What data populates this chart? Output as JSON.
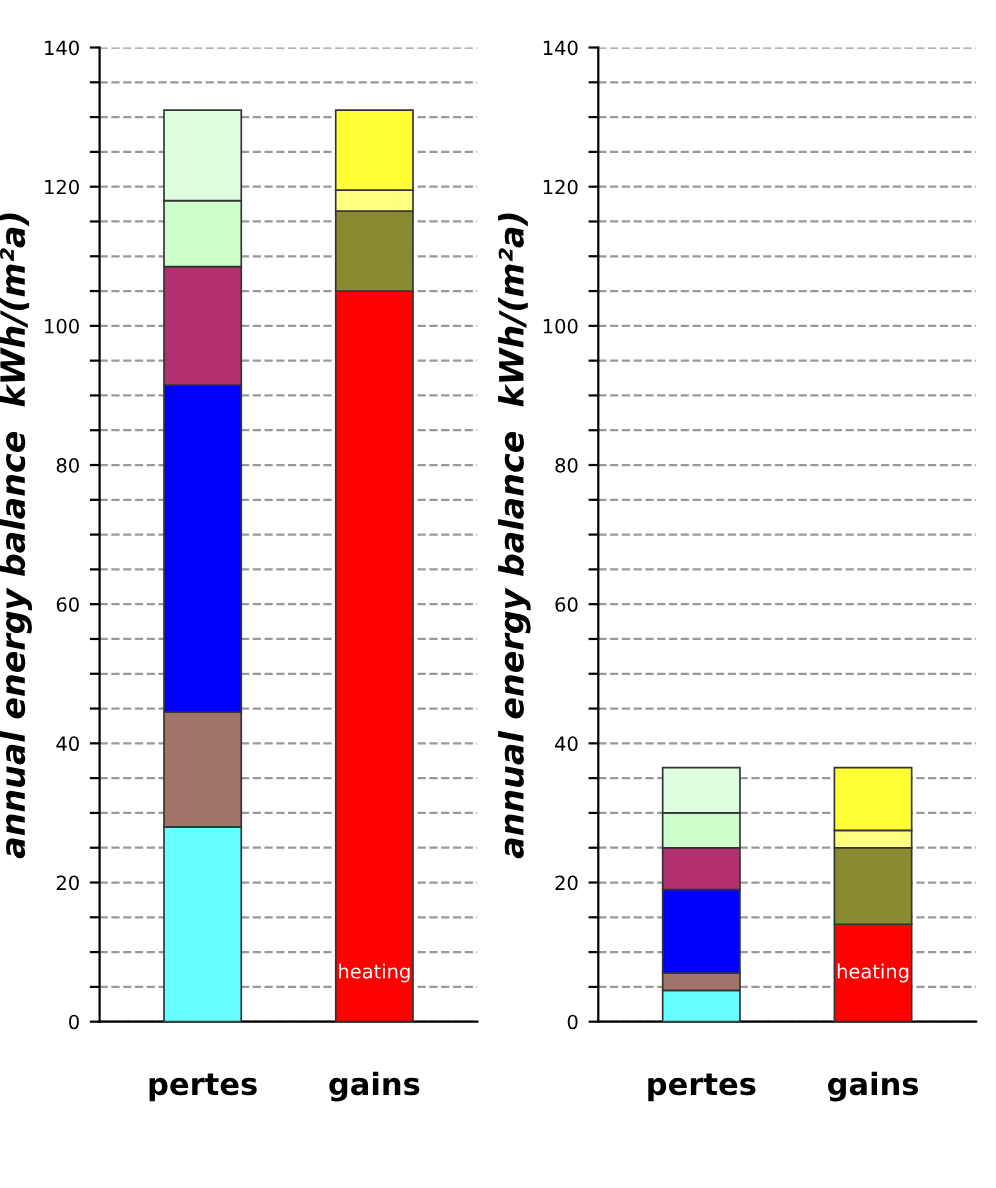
{
  "chart_data": [
    {
      "type": "bar",
      "stacked": true,
      "ylabel": "annual energy balance  kWh/(m²a)",
      "categories": [
        "pertes",
        "gains"
      ],
      "ylim": [
        0,
        140
      ],
      "yticks": [
        0,
        {
          "value": 5,
          "label": null
        },
        {
          "value": 10,
          "label": null
        },
        {
          "value": 15,
          "label": null
        },
        20,
        {
          "value": 25,
          "label": null
        },
        {
          "value": 30,
          "label": null
        },
        {
          "value": 35,
          "label": null
        },
        40,
        {
          "value": 45,
          "label": null
        },
        {
          "value": 50,
          "label": null
        },
        {
          "value": 55,
          "label": null
        },
        60,
        {
          "value": 65,
          "label": null
        },
        {
          "value": 70,
          "label": null
        },
        {
          "value": 75,
          "label": null
        },
        80,
        {
          "value": 85,
          "label": null
        },
        {
          "value": 90,
          "label": null
        },
        {
          "value": 95,
          "label": null
        },
        100,
        {
          "value": 105,
          "label": null
        },
        {
          "value": 110,
          "label": null
        },
        {
          "value": 115,
          "label": null
        },
        120,
        {
          "value": 125,
          "label": null
        },
        {
          "value": 130,
          "label": null
        },
        {
          "value": 135,
          "label": null
        },
        140
      ],
      "grid": "y",
      "series": [
        {
          "color": "#66ffff",
          "values": [
            28,
            null
          ]
        },
        {
          "color": "#a07468",
          "values": [
            16.5,
            null
          ]
        },
        {
          "color": "#0000ff",
          "values": [
            47,
            null
          ]
        },
        {
          "color": "#b3306e",
          "values": [
            17,
            null
          ]
        },
        {
          "color": "#ccffcc",
          "values": [
            9.5,
            null
          ]
        },
        {
          "color": "#ddffdd",
          "values": [
            13,
            null
          ]
        },
        {
          "color": "#ff0000",
          "values": [
            null,
            105
          ]
        },
        {
          "color": "#8a8a30",
          "values": [
            null,
            11.5
          ]
        },
        {
          "color": "#ffff80",
          "values": [
            null,
            3
          ]
        },
        {
          "color": "#ffff33",
          "values": [
            null,
            11.5
          ]
        }
      ],
      "annotations": [
        "heating"
      ]
    },
    {
      "type": "bar",
      "stacked": true,
      "ylabel": "annual energy balance  kWh/(m²a)",
      "categories": [
        "pertes",
        "gains"
      ],
      "ylim": [
        0,
        140
      ],
      "yticks": [
        0,
        {
          "value": 5,
          "label": null
        },
        {
          "value": 10,
          "label": null
        },
        {
          "value": 15,
          "label": null
        },
        20,
        {
          "value": 25,
          "label": null
        },
        {
          "value": 30,
          "label": null
        },
        {
          "value": 35,
          "label": null
        },
        40,
        {
          "value": 45,
          "label": null
        },
        {
          "value": 50,
          "label": null
        },
        {
          "value": 55,
          "label": null
        },
        60,
        {
          "value": 65,
          "label": null
        },
        {
          "value": 70,
          "label": null
        },
        {
          "value": 75,
          "label": null
        },
        80,
        {
          "value": 85,
          "label": null
        },
        {
          "value": 90,
          "label": null
        },
        {
          "value": 95,
          "label": null
        },
        100,
        {
          "value": 105,
          "label": null
        },
        {
          "value": 110,
          "label": null
        },
        {
          "value": 115,
          "label": null
        },
        120,
        {
          "value": 125,
          "label": null
        },
        {
          "value": 130,
          "label": null
        },
        {
          "value": 135,
          "label": null
        },
        140
      ],
      "grid": "y",
      "series": [
        {
          "color": "#66ffff",
          "values": [
            4.5,
            null
          ]
        },
        {
          "color": "#a07468",
          "values": [
            2.5,
            null
          ]
        },
        {
          "color": "#0000ff",
          "values": [
            12,
            null
          ]
        },
        {
          "color": "#b3306e",
          "values": [
            6,
            null
          ]
        },
        {
          "color": "#ccffcc",
          "values": [
            5,
            null
          ]
        },
        {
          "color": "#ddffdd",
          "values": [
            6.5,
            null
          ]
        },
        {
          "color": "#ff0000",
          "values": [
            null,
            14
          ]
        },
        {
          "color": "#8a8a30",
          "values": [
            null,
            11
          ]
        },
        {
          "color": "#ffff80",
          "values": [
            null,
            2.5
          ]
        },
        {
          "color": "#ffff33",
          "values": [
            null,
            9
          ]
        }
      ],
      "annotations": [
        "heating"
      ]
    }
  ]
}
